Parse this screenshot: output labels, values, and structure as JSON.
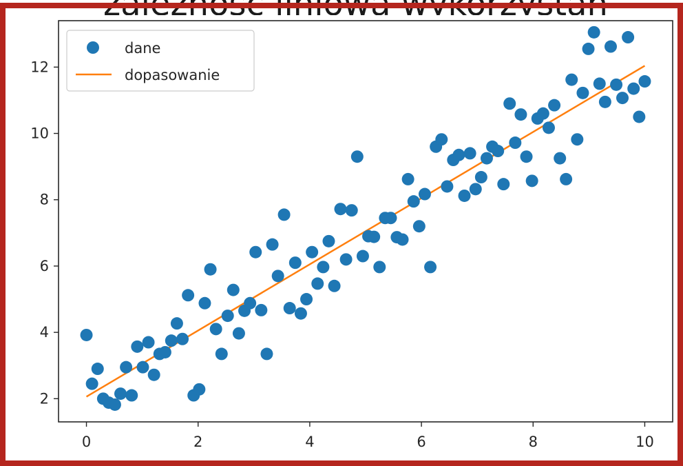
{
  "heading_fragment": "zależność liniowa wykorzystan",
  "colors": {
    "frame": "#b5261e",
    "points": "#1f77b4",
    "fit": "#ff7f0e",
    "axis": "#262626"
  },
  "chart_data": {
    "type": "scatter",
    "title": "",
    "xlabel": "",
    "ylabel": "",
    "xlim": [
      -0.5,
      10.5
    ],
    "ylim": [
      1.3,
      13.4
    ],
    "x_ticks": [
      0,
      2,
      4,
      6,
      8,
      10
    ],
    "y_ticks": [
      2,
      4,
      6,
      8,
      10,
      12
    ],
    "x_tick_labels": [
      "0",
      "2",
      "4",
      "6",
      "8",
      "10"
    ],
    "y_tick_labels": [
      "2",
      "4",
      "6",
      "8",
      "10",
      "12"
    ],
    "grid": false,
    "legend_position": "upper-left",
    "series": [
      {
        "name": "dane",
        "kind": "scatter",
        "color": "#1f77b4",
        "points": [
          [
            0.0,
            3.92
          ],
          [
            0.1,
            2.45
          ],
          [
            0.2,
            2.9
          ],
          [
            0.3,
            2.0
          ],
          [
            0.4,
            1.88
          ],
          [
            0.51,
            1.82
          ],
          [
            0.61,
            2.15
          ],
          [
            0.71,
            2.95
          ],
          [
            0.81,
            2.1
          ],
          [
            0.91,
            3.57
          ],
          [
            1.01,
            2.95
          ],
          [
            1.11,
            3.7
          ],
          [
            1.21,
            2.72
          ],
          [
            1.31,
            3.35
          ],
          [
            1.41,
            3.4
          ],
          [
            1.52,
            3.75
          ],
          [
            1.62,
            4.27
          ],
          [
            1.72,
            3.8
          ],
          [
            1.82,
            5.12
          ],
          [
            1.92,
            2.1
          ],
          [
            2.02,
            2.28
          ],
          [
            2.12,
            4.88
          ],
          [
            2.22,
            5.9
          ],
          [
            2.32,
            4.1
          ],
          [
            2.42,
            3.35
          ],
          [
            2.53,
            4.5
          ],
          [
            2.63,
            5.28
          ],
          [
            2.73,
            3.97
          ],
          [
            2.83,
            4.65
          ],
          [
            2.93,
            4.88
          ],
          [
            3.03,
            6.42
          ],
          [
            3.13,
            4.67
          ],
          [
            3.23,
            3.35
          ],
          [
            3.33,
            6.65
          ],
          [
            3.43,
            5.7
          ],
          [
            3.54,
            7.55
          ],
          [
            3.64,
            4.73
          ],
          [
            3.74,
            6.1
          ],
          [
            3.84,
            4.57
          ],
          [
            3.94,
            5.0
          ],
          [
            4.04,
            6.42
          ],
          [
            4.14,
            5.47
          ],
          [
            4.24,
            5.97
          ],
          [
            4.34,
            6.75
          ],
          [
            4.44,
            5.4
          ],
          [
            4.55,
            7.72
          ],
          [
            4.65,
            6.2
          ],
          [
            4.75,
            7.68
          ],
          [
            4.85,
            9.3
          ],
          [
            4.95,
            6.3
          ],
          [
            5.05,
            6.9
          ],
          [
            5.15,
            6.88
          ],
          [
            5.25,
            5.97
          ],
          [
            5.35,
            7.45
          ],
          [
            5.45,
            7.45
          ],
          [
            5.56,
            6.87
          ],
          [
            5.66,
            6.8
          ],
          [
            5.76,
            8.62
          ],
          [
            5.86,
            7.95
          ],
          [
            5.96,
            7.2
          ],
          [
            6.06,
            8.17
          ],
          [
            6.16,
            5.97
          ],
          [
            6.26,
            9.6
          ],
          [
            6.36,
            9.82
          ],
          [
            6.46,
            8.4
          ],
          [
            6.57,
            9.2
          ],
          [
            6.67,
            9.35
          ],
          [
            6.77,
            8.12
          ],
          [
            6.87,
            9.4
          ],
          [
            6.97,
            8.32
          ],
          [
            7.07,
            8.68
          ],
          [
            7.17,
            9.25
          ],
          [
            7.27,
            9.6
          ],
          [
            7.37,
            9.47
          ],
          [
            7.47,
            8.47
          ],
          [
            7.58,
            10.9
          ],
          [
            7.68,
            9.72
          ],
          [
            7.78,
            10.57
          ],
          [
            7.88,
            9.3
          ],
          [
            7.98,
            8.57
          ],
          [
            8.08,
            10.45
          ],
          [
            8.18,
            10.6
          ],
          [
            8.28,
            10.17
          ],
          [
            8.38,
            10.85
          ],
          [
            8.48,
            9.25
          ],
          [
            8.59,
            8.62
          ],
          [
            8.69,
            11.62
          ],
          [
            8.79,
            9.82
          ],
          [
            8.89,
            11.22
          ],
          [
            8.99,
            12.55
          ],
          [
            9.09,
            13.05
          ],
          [
            9.19,
            11.5
          ],
          [
            9.29,
            10.95
          ],
          [
            9.39,
            12.62
          ],
          [
            9.49,
            11.47
          ],
          [
            9.6,
            11.07
          ],
          [
            9.7,
            12.9
          ],
          [
            9.8,
            11.35
          ],
          [
            9.9,
            10.5
          ],
          [
            10.0,
            11.57
          ]
        ]
      },
      {
        "name": "dopasowanie",
        "kind": "line",
        "color": "#ff7f0e",
        "points": [
          [
            0,
            2.06
          ],
          [
            10,
            12.04
          ]
        ]
      }
    ]
  }
}
